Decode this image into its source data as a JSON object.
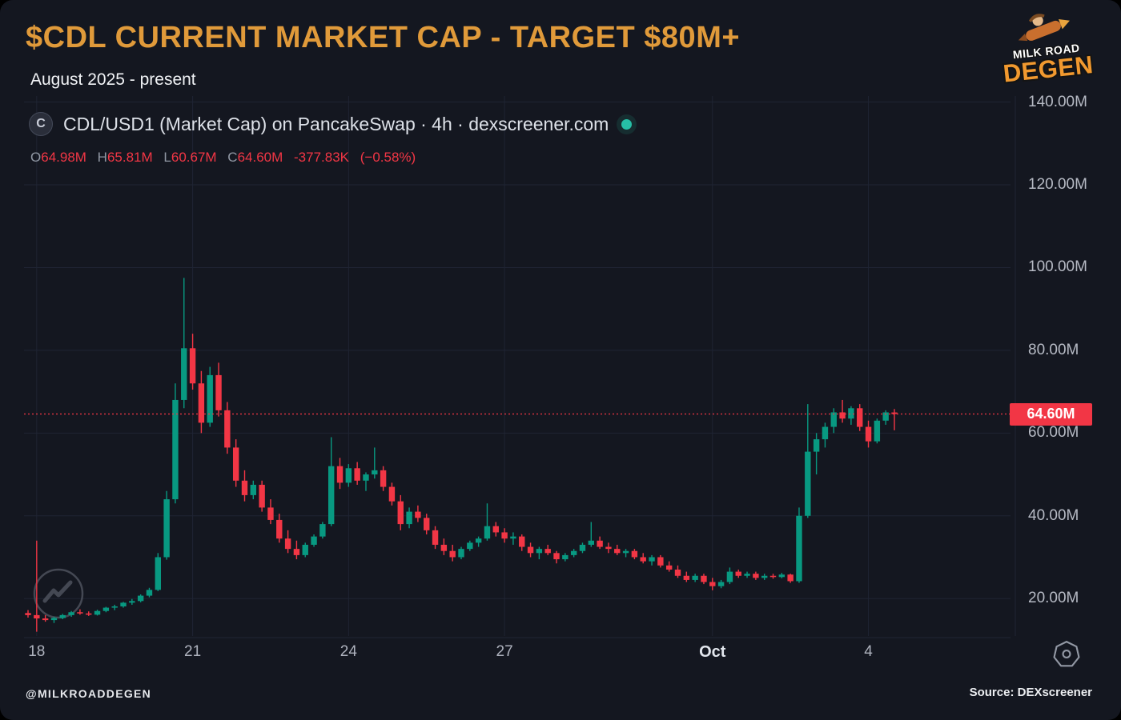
{
  "header": {
    "title": "$CDL CURRENT MARKET CAP - TARGET $80M+",
    "subtitle": "August 2025 - present"
  },
  "logo": {
    "line1": "MILK ROAD",
    "line2": "DEGEN"
  },
  "chart_header": {
    "symbol_icon": "C",
    "title": "CDL/USD1 (Market Cap) on PancakeSwap · 4h · dexscreener.com",
    "status_color": "#26bfa6",
    "ohlc": {
      "o_label": "O",
      "o": "64.98M",
      "h_label": "H",
      "h": "65.81M",
      "l_label": "L",
      "l": "60.67M",
      "c_label": "C",
      "c": "64.60M",
      "change_abs": "-377.83K",
      "change_pct": "(−0.58%)"
    }
  },
  "price_line": {
    "label": "64.60M",
    "value": 64.6,
    "color": "#f23645"
  },
  "footer": {
    "handle": "@MILKROADDEGEN",
    "source": "Source: DEXscreener"
  },
  "chart_data": {
    "type": "candlestick",
    "pair": "CDL/USD1",
    "timeframe": "4h",
    "title": "CDL/USD1 Market Cap on PancakeSwap",
    "ylabel": "Market Cap (USD)",
    "ylim": [
      11,
      145
    ],
    "grid": true,
    "colors": {
      "up": "#089981",
      "down": "#f23645"
    },
    "y_ticks": [
      {
        "value": 140,
        "label": "140.00M"
      },
      {
        "value": 120,
        "label": "120.00M"
      },
      {
        "value": 100,
        "label": "100.00M"
      },
      {
        "value": 80,
        "label": "80.00M"
      },
      {
        "value": 60,
        "label": "60.00M"
      },
      {
        "value": 40,
        "label": "40.00M"
      },
      {
        "value": 20,
        "label": "20.00M"
      }
    ],
    "x_ticks": [
      {
        "index": 1,
        "label": "18"
      },
      {
        "index": 19,
        "label": "21"
      },
      {
        "index": 37,
        "label": "24"
      },
      {
        "index": 55,
        "label": "27"
      },
      {
        "index": 79,
        "label": "Oct",
        "emphasis": true
      },
      {
        "index": 97,
        "label": "4"
      }
    ],
    "units": "millions USD, candles are [open, high, low, close]",
    "candles": [
      [
        16.5,
        17.2,
        15.4,
        16.0
      ],
      [
        16.0,
        34.0,
        12.0,
        15.2
      ],
      [
        15.2,
        16.0,
        14.4,
        14.8
      ],
      [
        14.8,
        15.6,
        14.1,
        15.3
      ],
      [
        15.3,
        16.3,
        15.0,
        16.0
      ],
      [
        16.0,
        17.0,
        15.6,
        16.7
      ],
      [
        16.7,
        17.4,
        16.1,
        16.4
      ],
      [
        16.4,
        16.9,
        15.8,
        16.1
      ],
      [
        16.1,
        17.3,
        15.9,
        17.0
      ],
      [
        17.0,
        18.0,
        16.7,
        17.8
      ],
      [
        17.8,
        18.5,
        17.2,
        18.1
      ],
      [
        18.1,
        19.2,
        17.8,
        19.0
      ],
      [
        19.0,
        19.9,
        18.5,
        19.4
      ],
      [
        19.4,
        21.0,
        19.1,
        20.7
      ],
      [
        20.7,
        22.6,
        20.3,
        22.1
      ],
      [
        22.1,
        31.0,
        21.8,
        30.0
      ],
      [
        30.0,
        46.0,
        29.4,
        44.0
      ],
      [
        44.0,
        72.0,
        43.0,
        68.0
      ],
      [
        68.0,
        97.5,
        66.0,
        80.5
      ],
      [
        80.5,
        84.0,
        70.5,
        72.0
      ],
      [
        72.0,
        75.0,
        60.0,
        62.5
      ],
      [
        62.5,
        76.0,
        61.5,
        74.0
      ],
      [
        74.0,
        77.0,
        64.0,
        65.5
      ],
      [
        65.5,
        67.5,
        55.0,
        56.5
      ],
      [
        56.5,
        58.5,
        47.0,
        48.5
      ],
      [
        48.5,
        51.0,
        43.5,
        45.0
      ],
      [
        45.0,
        48.5,
        44.0,
        47.5
      ],
      [
        47.5,
        48.5,
        41.0,
        42.0
      ],
      [
        42.0,
        44.0,
        38.0,
        39.0
      ],
      [
        39.0,
        40.5,
        33.5,
        34.5
      ],
      [
        34.5,
        36.5,
        31.0,
        32.0
      ],
      [
        32.0,
        34.0,
        29.5,
        30.5
      ],
      [
        30.5,
        33.5,
        30.0,
        33.0
      ],
      [
        33.0,
        35.5,
        32.5,
        35.0
      ],
      [
        35.0,
        38.5,
        34.5,
        38.0
      ],
      [
        38.0,
        59.0,
        37.5,
        52.0
      ],
      [
        52.0,
        54.0,
        46.5,
        48.0
      ],
      [
        48.0,
        52.5,
        47.0,
        51.5
      ],
      [
        51.5,
        53.0,
        47.5,
        48.5
      ],
      [
        48.5,
        50.5,
        46.0,
        50.0
      ],
      [
        50.0,
        56.5,
        49.0,
        51.0
      ],
      [
        51.0,
        52.0,
        46.0,
        47.0
      ],
      [
        47.0,
        48.0,
        42.5,
        43.5
      ],
      [
        43.5,
        45.0,
        36.5,
        38.0
      ],
      [
        38.0,
        42.0,
        37.0,
        41.0
      ],
      [
        41.0,
        42.5,
        38.5,
        39.5
      ],
      [
        39.5,
        40.5,
        35.5,
        36.5
      ],
      [
        36.5,
        37.5,
        32.0,
        33.0
      ],
      [
        33.0,
        34.5,
        30.5,
        31.5
      ],
      [
        31.5,
        33.0,
        29.0,
        30.0
      ],
      [
        30.0,
        32.5,
        29.5,
        32.0
      ],
      [
        32.0,
        34.0,
        31.5,
        33.5
      ],
      [
        33.5,
        35.0,
        32.5,
        34.5
      ],
      [
        34.5,
        43.0,
        34.0,
        37.5
      ],
      [
        37.5,
        38.5,
        35.0,
        36.0
      ],
      [
        36.0,
        37.0,
        33.5,
        34.5
      ],
      [
        34.5,
        36.0,
        33.0,
        35.0
      ],
      [
        35.0,
        35.5,
        31.5,
        32.5
      ],
      [
        32.5,
        33.5,
        30.0,
        31.0
      ],
      [
        31.0,
        32.5,
        29.5,
        32.0
      ],
      [
        32.0,
        33.0,
        30.5,
        31.0
      ],
      [
        31.0,
        31.5,
        28.5,
        29.5
      ],
      [
        29.5,
        31.0,
        29.0,
        30.5
      ],
      [
        30.5,
        32.0,
        30.0,
        31.5
      ],
      [
        31.5,
        33.5,
        31.0,
        33.0
      ],
      [
        33.0,
        38.5,
        32.5,
        34.0
      ],
      [
        34.0,
        35.0,
        32.0,
        32.5
      ],
      [
        32.5,
        33.5,
        31.0,
        32.0
      ],
      [
        32.0,
        33.0,
        30.5,
        31.0
      ],
      [
        31.0,
        32.0,
        30.0,
        31.5
      ],
      [
        31.5,
        32.0,
        29.5,
        30.0
      ],
      [
        30.0,
        31.0,
        28.5,
        29.0
      ],
      [
        29.0,
        30.5,
        28.0,
        30.0
      ],
      [
        30.0,
        30.5,
        27.5,
        28.0
      ],
      [
        28.0,
        29.0,
        26.5,
        27.0
      ],
      [
        27.0,
        28.0,
        25.0,
        25.5
      ],
      [
        25.5,
        26.5,
        24.0,
        24.5
      ],
      [
        24.5,
        26.0,
        24.0,
        25.5
      ],
      [
        25.5,
        26.0,
        23.5,
        24.0
      ],
      [
        24.0,
        25.0,
        22.0,
        23.0
      ],
      [
        23.0,
        24.5,
        22.5,
        24.0
      ],
      [
        24.0,
        27.5,
        23.5,
        26.5
      ],
      [
        26.5,
        27.0,
        25.0,
        25.5
      ],
      [
        25.5,
        26.5,
        25.0,
        26.0
      ],
      [
        26.0,
        26.5,
        24.5,
        25.0
      ],
      [
        25.0,
        26.0,
        24.5,
        25.5
      ],
      [
        25.5,
        26.0,
        24.8,
        25.2
      ],
      [
        25.2,
        26.2,
        24.9,
        25.8
      ],
      [
        25.8,
        26.0,
        23.8,
        24.2
      ],
      [
        24.2,
        42.0,
        23.8,
        40.0
      ],
      [
        40.0,
        67.0,
        39.5,
        55.5
      ],
      [
        55.5,
        60.0,
        50.0,
        58.5
      ],
      [
        58.5,
        62.5,
        56.5,
        61.5
      ],
      [
        61.5,
        66.0,
        60.0,
        65.0
      ],
      [
        65.0,
        68.0,
        62.5,
        63.5
      ],
      [
        63.5,
        66.5,
        62.0,
        66.0
      ],
      [
        66.0,
        67.0,
        60.5,
        61.5
      ],
      [
        61.5,
        63.0,
        56.5,
        58.0
      ],
      [
        58.0,
        63.5,
        57.5,
        63.0
      ],
      [
        63.0,
        65.5,
        62.0,
        65.0
      ],
      [
        64.98,
        65.81,
        60.67,
        64.6
      ]
    ]
  }
}
